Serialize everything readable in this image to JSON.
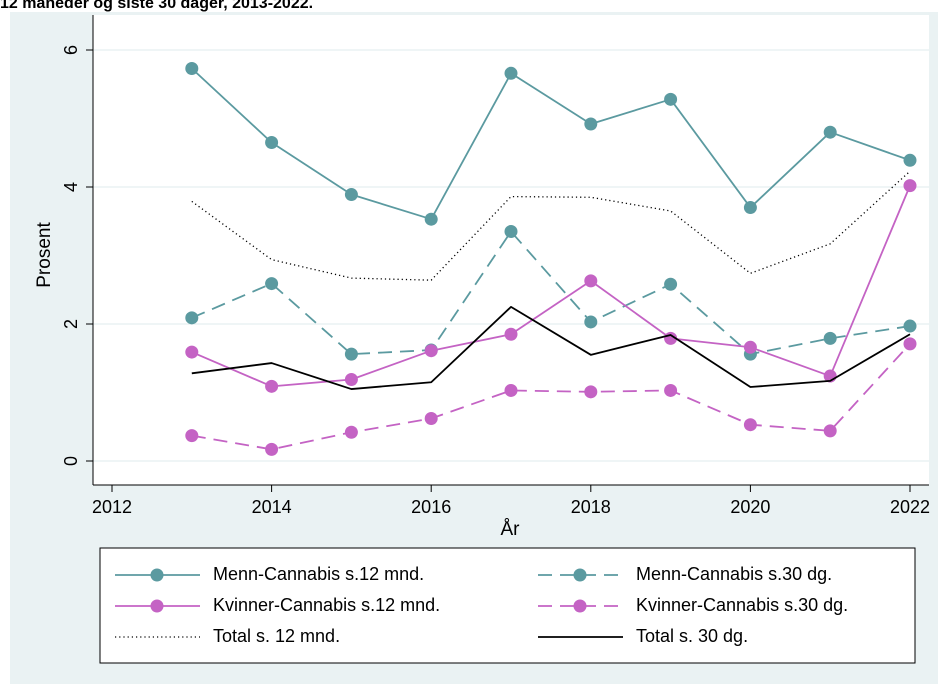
{
  "header": {
    "title": "12 måneder og siste 30 dager, 2013-2022."
  },
  "colors": {
    "background": "#eaf2f3",
    "teal": "#5b9aa0",
    "magenta": "#c463c4",
    "black": "#000000",
    "grid": "#ffffff"
  },
  "chart_data": {
    "type": "line",
    "xlabel": "År",
    "ylabel": "Prosent",
    "xlim": [
      2012,
      2022
    ],
    "ylim": [
      0,
      6
    ],
    "xticks": [
      2012,
      2014,
      2016,
      2018,
      2020,
      2022
    ],
    "yticks": [
      0,
      2,
      4,
      6
    ],
    "grid": "horizontal",
    "legend_position": "bottom",
    "x": [
      2013,
      2014,
      2015,
      2016,
      2017,
      2018,
      2019,
      2020,
      2021,
      2022
    ],
    "series": [
      {
        "name": "Menn-Cannabis s.12 mnd.",
        "color": "#5b9aa0",
        "dash": "solid",
        "marker": true,
        "values": [
          5.73,
          4.65,
          3.89,
          3.53,
          5.66,
          4.92,
          5.28,
          3.7,
          4.8,
          4.39
        ]
      },
      {
        "name": "Menn-Cannabis s.30 dg.",
        "color": "#5b9aa0",
        "dash": "dashed",
        "marker": true,
        "values": [
          2.09,
          2.59,
          1.56,
          1.62,
          3.35,
          2.03,
          2.58,
          1.56,
          1.79,
          1.97
        ]
      },
      {
        "name": "Kvinner-Cannabis s.12 mnd.",
        "color": "#c463c4",
        "dash": "solid",
        "marker": true,
        "values": [
          1.59,
          1.09,
          1.19,
          1.61,
          1.85,
          2.63,
          1.79,
          1.66,
          1.24,
          4.02
        ]
      },
      {
        "name": "Kvinner-Cannabis s.30 dg.",
        "color": "#c463c4",
        "dash": "dashed",
        "marker": true,
        "values": [
          0.37,
          0.17,
          0.42,
          0.62,
          1.03,
          1.01,
          1.03,
          0.53,
          0.44,
          1.71
        ]
      },
      {
        "name": "Total s. 12 mnd.",
        "color": "#000000",
        "dash": "dotted",
        "marker": false,
        "values": [
          3.79,
          2.94,
          2.67,
          2.64,
          3.86,
          3.85,
          3.65,
          2.74,
          3.17,
          4.23
        ]
      },
      {
        "name": "Total s. 30 dg.",
        "color": "#000000",
        "dash": "solid",
        "marker": false,
        "values": [
          1.28,
          1.43,
          1.05,
          1.15,
          2.25,
          1.55,
          1.84,
          1.08,
          1.17,
          1.85
        ]
      }
    ]
  }
}
